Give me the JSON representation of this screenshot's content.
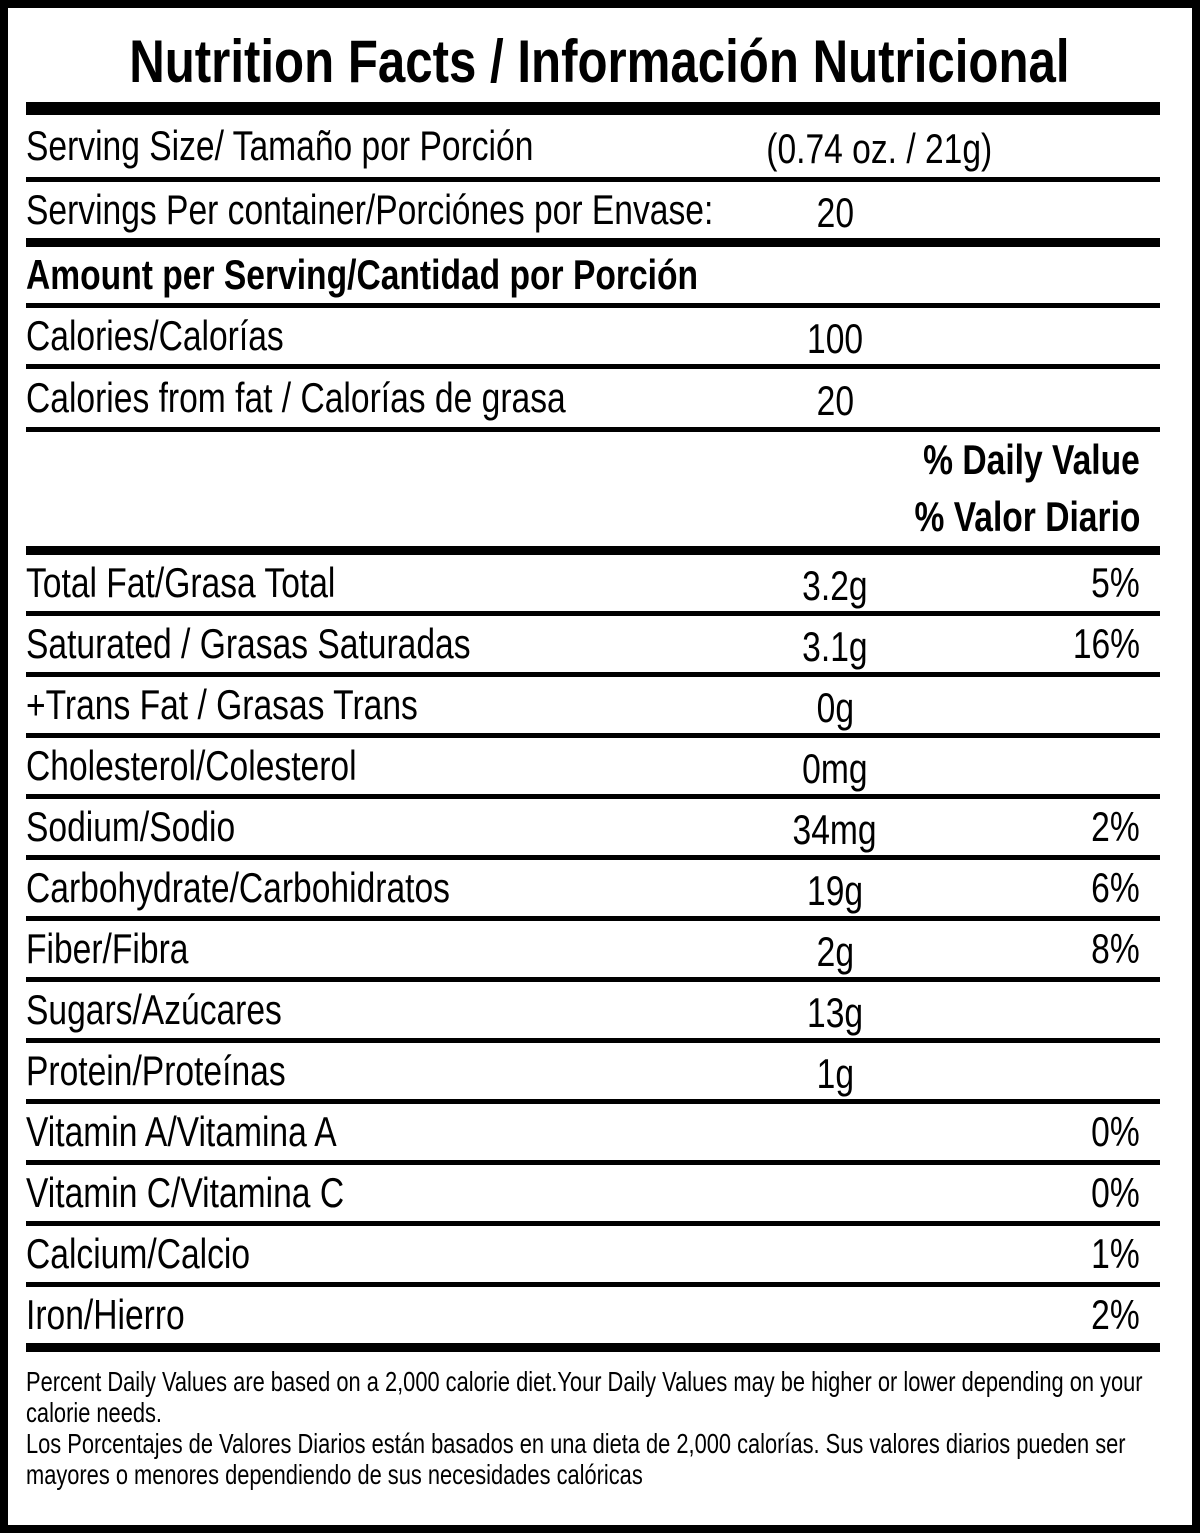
{
  "label": {
    "title": "Nutrition Facts / Información Nutricional",
    "serving": {
      "label": "Serving Size/ Tamaño por Porción",
      "value": "(0.74 oz. / 21g)"
    },
    "servings_per_container": {
      "label": "Servings Per container/Porciónes por Envase:",
      "value": "20"
    },
    "amount_header": "Amount per Serving/Cantidad por Porción",
    "calories": {
      "label": "Calories/Calorías",
      "value": "100"
    },
    "calories_from_fat": {
      "label": "Calories from fat / Calorías de grasa",
      "value": "20"
    },
    "daily_value_header_en": "% Daily Value",
    "daily_value_header_es": "% Valor Diario",
    "nutrients": [
      {
        "label": "Total Fat/Grasa Total",
        "value": "3.2g",
        "dv": "5%"
      },
      {
        "label": "Saturated / Grasas Saturadas",
        "value": "3.1g",
        "dv": "16%"
      },
      {
        "label": "+Trans Fat / Grasas Trans",
        "value": "0g",
        "dv": ""
      },
      {
        "label": "Cholesterol/Colesterol",
        "value": "0mg",
        "dv": ""
      },
      {
        "label": "Sodium/Sodio",
        "value": "34mg",
        "dv": "2%"
      },
      {
        "label": "Carbohydrate/Carbohidratos",
        "value": "19g",
        "dv": "6%"
      },
      {
        "label": "Fiber/Fibra",
        "value": "2g",
        "dv": "8%"
      },
      {
        "label": "Sugars/Azúcares",
        "value": "13g",
        "dv": ""
      },
      {
        "label": "Protein/Proteínas",
        "value": "1g",
        "dv": ""
      },
      {
        "label": "Vitamin A/Vitamina A",
        "value": "",
        "dv": "0%"
      },
      {
        "label": "Vitamin C/Vitamina C",
        "value": "",
        "dv": "0%"
      },
      {
        "label": "Calcium/Calcio",
        "value": "",
        "dv": "1%"
      },
      {
        "label": "Iron/Hierro",
        "value": "",
        "dv": "2%"
      }
    ],
    "footnote": {
      "en_lines": [
        "Percent Daily Values are based on a 2,000 calorie diet.Your Daily Values may be higher or lower depending on your",
        "calorie needs."
      ],
      "es_lines": [
        "Los Porcentajes de Valores Diarios están basados en una dieta de 2,000 calorías. Sus valores diarios pueden ser",
        "mayores o menores dependiendo de sus necesidades calóricas"
      ]
    },
    "colors": {
      "text": "#000000",
      "background": "#ffffff"
    }
  }
}
